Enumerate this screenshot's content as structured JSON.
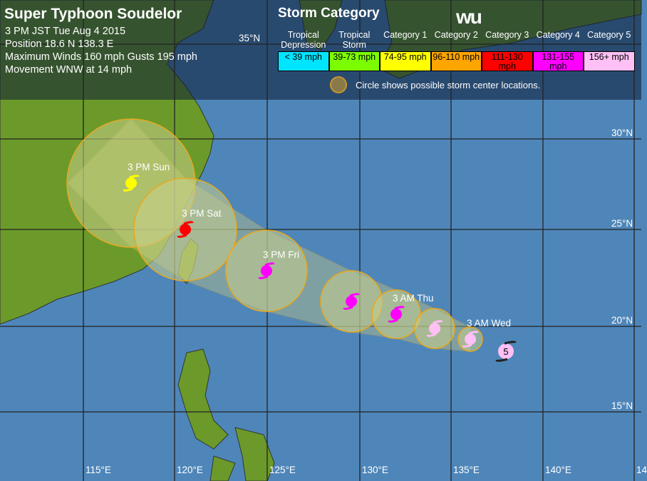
{
  "header": {
    "title": "Super Typhoon Soudelor",
    "time": "3 PM JST Tue Aug 4 2015",
    "position": "Position 18.6 N 138.3 E",
    "winds": "Maximum Winds 160 mph  Gusts 195 mph",
    "movement": "Movement WNW at 14 mph"
  },
  "legend": {
    "title": "Storm Category",
    "logo": "wu",
    "categories": [
      {
        "name": "Tropical Depression",
        "range": "< 39 mph",
        "color": "#00e5ff"
      },
      {
        "name": "Tropical Storm",
        "range": "39-73 mph",
        "color": "#7cfc00"
      },
      {
        "name": "Category 1",
        "range": "74-95 mph",
        "color": "#ffff00"
      },
      {
        "name": "Category 2",
        "range": "96-110 mph",
        "color": "#ffa500"
      },
      {
        "name": "Category 3",
        "range": "111-130 mph",
        "color": "#ff0000"
      },
      {
        "name": "Category 4",
        "range": "131-155 mph",
        "color": "#ff00ff"
      },
      {
        "name": "Category 5",
        "range": "156+ mph",
        "color": "#ffc0f5"
      }
    ],
    "circle_note": "Circle shows possible storm center locations."
  },
  "axes": {
    "lon": [
      "115°E",
      "120°E",
      "125°E",
      "130°E",
      "135°E",
      "140°E",
      "14"
    ],
    "lat": [
      "35°N",
      "30°N",
      "25°N",
      "20°N",
      "15°N"
    ]
  },
  "track": [
    {
      "label": "",
      "category": 5,
      "symbol": "5",
      "color": "#ffc0f5",
      "current": true
    },
    {
      "label": "3 AM Wed",
      "category": 5,
      "color": "#ffc0f5"
    },
    {
      "label": "",
      "category": 5,
      "color": "#ffc0f5"
    },
    {
      "label": "3 AM Thu",
      "category": 4,
      "color": "#ff00ff"
    },
    {
      "label": "",
      "category": 4,
      "color": "#ff00ff"
    },
    {
      "label": "3 PM Fri",
      "category": 4,
      "color": "#ff00ff"
    },
    {
      "label": "3 PM Sat",
      "category": 3,
      "color": "#ff0000"
    },
    {
      "label": "3 PM Sun",
      "category": 1,
      "color": "#ffff00"
    }
  ]
}
